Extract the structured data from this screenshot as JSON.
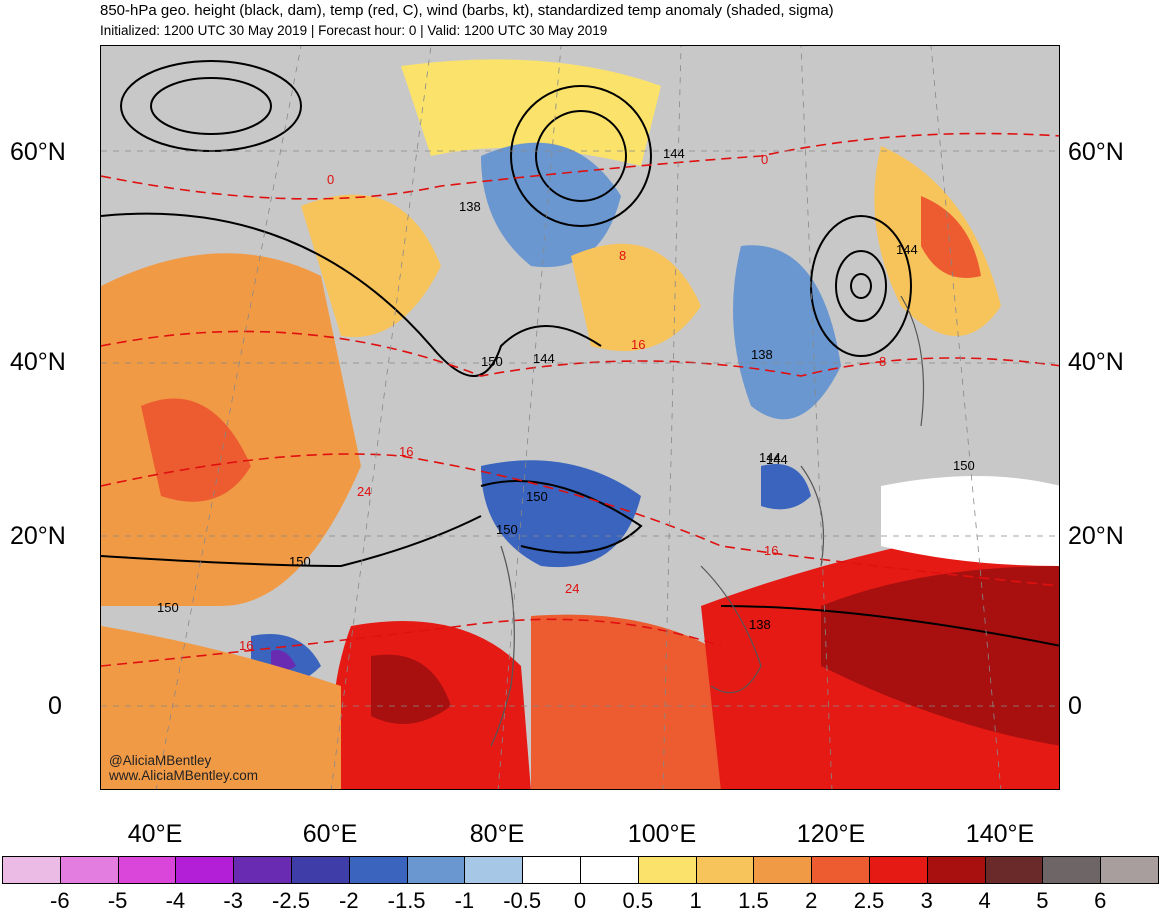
{
  "title": "850-hPa geo. height (black, dam), temp (red, C), wind (barbs, kt), standardized temp anomaly (shaded, sigma)",
  "subtitle": "Initialized: 1200 UTC 30 May 2019 | Forecast hour: 0 | Valid: 1200 UTC 30 May 2019",
  "credits": [
    "@AliciaMBentley",
    "www.AliciaMBentley.com"
  ],
  "lat_labels": [
    "60°N",
    "40°N",
    "20°N",
    "0"
  ],
  "lon_labels": [
    "40°E",
    "60°E",
    "80°E",
    "100°E",
    "120°E",
    "140°E"
  ],
  "height_labels": [
    "138",
    "144",
    "150",
    "144",
    "138",
    "144",
    "150",
    "150",
    "144",
    "150",
    "150",
    "150",
    "138",
    "144"
  ],
  "temp_labels": [
    "0",
    "8",
    "16",
    "16",
    "24",
    "24",
    "16",
    "16",
    "8",
    "0"
  ],
  "colorbar": {
    "labels": [
      "-6",
      "-5",
      "-4",
      "-3",
      "-2.5",
      "-2",
      "-1.5",
      "-1",
      "-0.5",
      "0",
      "0.5",
      "1",
      "1.5",
      "2",
      "2.5",
      "3",
      "4",
      "5",
      "6"
    ],
    "colors": [
      "#ebbbe6",
      "#e37ee0",
      "#d946d9",
      "#b31fd6",
      "#6a2bb3",
      "#3f3ea8",
      "#3a64bd",
      "#6a97d0",
      "#a6c8e6",
      "#ffffff",
      "#ffffff",
      "#fbe36b",
      "#f7c45c",
      "#f19a45",
      "#ec5c30",
      "#e61a14",
      "#a81010",
      "#6a2a2a",
      "#6e6666",
      "#a99e9e"
    ]
  }
}
